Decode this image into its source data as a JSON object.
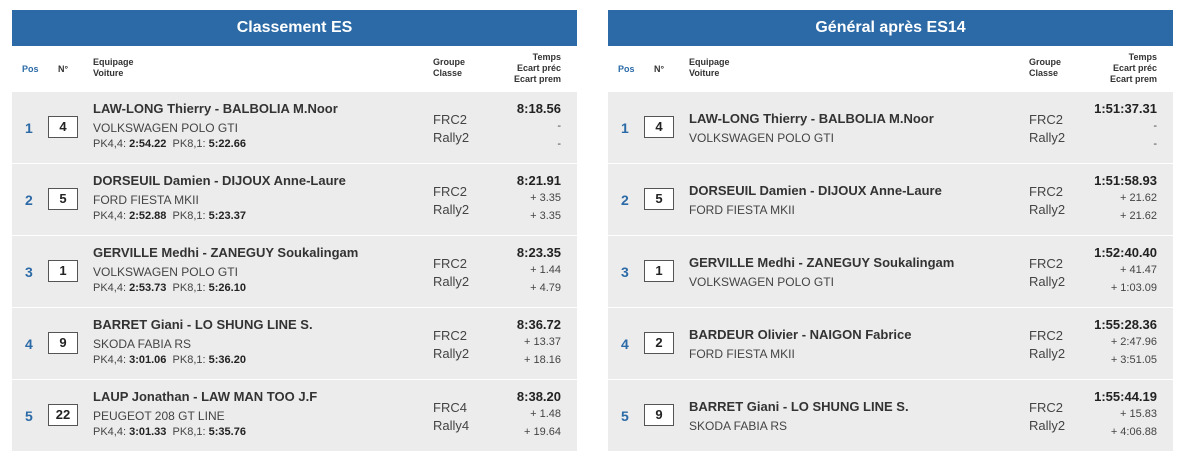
{
  "left": {
    "title": "Classement ES",
    "headers": {
      "pos": "Pos",
      "num": "N°",
      "crew1": "Equipage",
      "crew2": "Voiture",
      "grp1": "Groupe",
      "grp2": "Classe",
      "t1": "Temps",
      "t2": "Ecart préc",
      "t3": "Ecart prem"
    },
    "rows": [
      {
        "pos": "1",
        "num": "4",
        "crew": "LAW-LONG Thierry - BALBOLIA M.Noor",
        "car": "VOLKSWAGEN POLO GTI",
        "pk44_label": "PK4,4:",
        "pk44": "2:54.22",
        "pk81_label": "PK8,1:",
        "pk81": "5:22.66",
        "group": "FRC2",
        "class": "Rally2",
        "time": "8:18.56",
        "gap_prev": "-",
        "gap_first": "-"
      },
      {
        "pos": "2",
        "num": "5",
        "crew": "DORSEUIL Damien - DIJOUX Anne-Laure",
        "car": "FORD FIESTA MKII",
        "pk44_label": "PK4,4:",
        "pk44": "2:52.88",
        "pk81_label": "PK8,1:",
        "pk81": "5:23.37",
        "group": "FRC2",
        "class": "Rally2",
        "time": "8:21.91",
        "gap_prev": "+ 3.35",
        "gap_first": "+ 3.35"
      },
      {
        "pos": "3",
        "num": "1",
        "crew": "GERVILLE Medhi - ZANEGUY Soukalingam",
        "car": "VOLKSWAGEN POLO GTI",
        "pk44_label": "PK4,4:",
        "pk44": "2:53.73",
        "pk81_label": "PK8,1:",
        "pk81": "5:26.10",
        "group": "FRC2",
        "class": "Rally2",
        "time": "8:23.35",
        "gap_prev": "+ 1.44",
        "gap_first": "+ 4.79"
      },
      {
        "pos": "4",
        "num": "9",
        "crew": "BARRET Giani - LO SHUNG LINE S.",
        "car": "SKODA FABIA RS",
        "pk44_label": "PK4,4:",
        "pk44": "3:01.06",
        "pk81_label": "PK8,1:",
        "pk81": "5:36.20",
        "group": "FRC2",
        "class": "Rally2",
        "time": "8:36.72",
        "gap_prev": "+ 13.37",
        "gap_first": "+ 18.16"
      },
      {
        "pos": "5",
        "num": "22",
        "crew": "LAUP Jonathan - LAW MAN TOO J.F",
        "car": "PEUGEOT 208 GT LINE",
        "pk44_label": "PK4,4:",
        "pk44": "3:01.33",
        "pk81_label": "PK8,1:",
        "pk81": "5:35.76",
        "group": "FRC4",
        "class": "Rally4",
        "time": "8:38.20",
        "gap_prev": "+ 1.48",
        "gap_first": "+ 19.64"
      }
    ]
  },
  "right": {
    "title": "Général après ES14",
    "headers": {
      "pos": "Pos",
      "num": "N°",
      "crew1": "Equipage",
      "crew2": "Voiture",
      "grp1": "Groupe",
      "grp2": "Classe",
      "t1": "Temps",
      "t2": "Ecart préc",
      "t3": "Ecart prem"
    },
    "rows": [
      {
        "pos": "1",
        "num": "4",
        "crew": "LAW-LONG Thierry - BALBOLIA M.Noor",
        "car": "VOLKSWAGEN POLO GTI",
        "group": "FRC2",
        "class": "Rally2",
        "time": "1:51:37.31",
        "gap_prev": "-",
        "gap_first": "-"
      },
      {
        "pos": "2",
        "num": "5",
        "crew": "DORSEUIL Damien - DIJOUX Anne-Laure",
        "car": "FORD FIESTA MKII",
        "group": "FRC2",
        "class": "Rally2",
        "time": "1:51:58.93",
        "gap_prev": "+ 21.62",
        "gap_first": "+ 21.62"
      },
      {
        "pos": "3",
        "num": "1",
        "crew": "GERVILLE Medhi - ZANEGUY Soukalingam",
        "car": "VOLKSWAGEN POLO GTI",
        "group": "FRC2",
        "class": "Rally2",
        "time": "1:52:40.40",
        "gap_prev": "+ 41.47",
        "gap_first": "+ 1:03.09"
      },
      {
        "pos": "4",
        "num": "2",
        "crew": "BARDEUR Olivier - NAIGON Fabrice",
        "car": "FORD FIESTA MKII",
        "group": "FRC2",
        "class": "Rally2",
        "time": "1:55:28.36",
        "gap_prev": "+ 2:47.96",
        "gap_first": "+ 3:51.05"
      },
      {
        "pos": "5",
        "num": "9",
        "crew": "BARRET Giani - LO SHUNG LINE S.",
        "car": "SKODA FABIA RS",
        "group": "FRC2",
        "class": "Rally2",
        "time": "1:55:44.19",
        "gap_prev": "+ 15.83",
        "gap_first": "+ 4:06.88"
      }
    ]
  }
}
